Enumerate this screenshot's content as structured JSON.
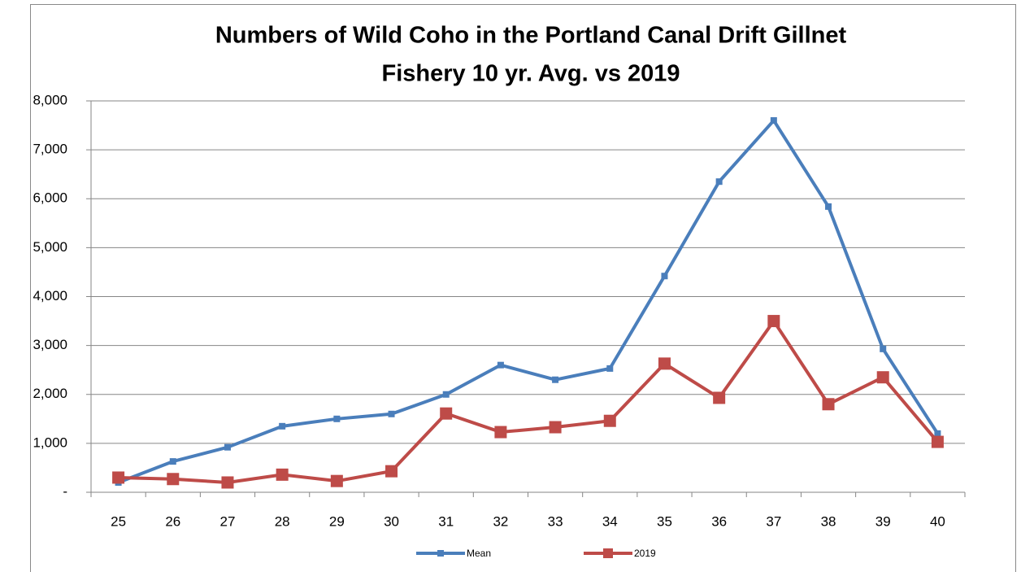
{
  "chart_data": {
    "type": "line",
    "title": [
      "Numbers of Wild Coho in the Portland Canal Drift Gillnet",
      "Fishery 10 yr. Avg. vs 2019"
    ],
    "categories": [
      "25",
      "26",
      "27",
      "28",
      "29",
      "30",
      "31",
      "32",
      "33",
      "34",
      "35",
      "36",
      "37",
      "38",
      "39",
      "40"
    ],
    "series": [
      {
        "name": "Mean",
        "color": "#4a7ebb",
        "values": [
          200,
          630,
          920,
          1350,
          1500,
          1600,
          2000,
          2600,
          2300,
          2530,
          4420,
          6350,
          7600,
          5840,
          2930,
          1200
        ]
      },
      {
        "name": "2019",
        "color": "#be4b48",
        "values": [
          300,
          270,
          200,
          360,
          230,
          430,
          1610,
          1230,
          1330,
          1460,
          2630,
          1930,
          3500,
          1800,
          2350,
          1030
        ]
      }
    ],
    "ylim": [
      0,
      8000
    ],
    "yticks": [
      {
        "value": 0,
        "label": "-"
      },
      {
        "value": 1000,
        "label": "1,000"
      },
      {
        "value": 2000,
        "label": "2,000"
      },
      {
        "value": 3000,
        "label": "3,000"
      },
      {
        "value": 4000,
        "label": "4,000"
      },
      {
        "value": 5000,
        "label": "5,000"
      },
      {
        "value": 6000,
        "label": "6,000"
      },
      {
        "value": 7000,
        "label": "7,000"
      },
      {
        "value": 8000,
        "label": "8,000"
      }
    ],
    "grid": true,
    "legend": "bottom"
  }
}
